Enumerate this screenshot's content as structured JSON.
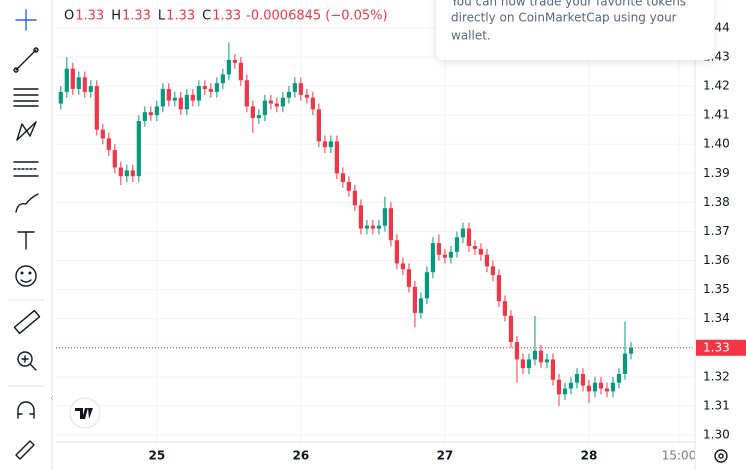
{
  "chart_data": {
    "type": "candlestick",
    "legend": [
      {
        "label": "O",
        "value": 1.33
      },
      {
        "label": "H",
        "value": 1.33
      },
      {
        "label": "L",
        "value": 1.33
      },
      {
        "label": "C",
        "value": 1.33
      }
    ],
    "change": "-0.0006845 (−0.05%)",
    "x": [
      24.3333,
      24.375,
      24.4167,
      24.4583,
      24.5,
      24.5417,
      24.5833,
      24.625,
      24.6667,
      24.7083,
      24.75,
      24.7917,
      24.8333,
      24.875,
      24.9167,
      24.9583,
      25.0,
      25.0417,
      25.0833,
      25.125,
      25.1667,
      25.2083,
      25.25,
      25.2917,
      25.3333,
      25.375,
      25.4167,
      25.4583,
      25.5,
      25.5417,
      25.5833,
      25.625,
      25.6667,
      25.7083,
      25.75,
      25.7917,
      25.8333,
      25.875,
      25.9167,
      25.9583,
      26.0,
      26.0417,
      26.0833,
      26.125,
      26.1667,
      26.2083,
      26.25,
      26.2917,
      26.3333,
      26.375,
      26.4167,
      26.4583,
      26.5,
      26.5417,
      26.5833,
      26.625,
      26.6667,
      26.7083,
      26.75,
      26.7917,
      26.8333,
      26.875,
      26.9167,
      26.9583,
      27.0,
      27.0417,
      27.0833,
      27.125,
      27.1667,
      27.2083,
      27.25,
      27.2917,
      27.3333,
      27.375,
      27.4167,
      27.4583,
      27.5,
      27.5417,
      27.5833,
      27.625,
      27.6667,
      27.7083,
      27.75,
      27.7917,
      27.8333,
      27.875,
      27.9167,
      27.9583,
      28.0,
      28.0417,
      28.0833,
      28.125,
      28.1667,
      28.2083,
      28.25,
      28.2917
    ],
    "open": [
      1.414,
      1.418,
      1.426,
      1.419,
      1.423,
      1.418,
      1.42,
      1.405,
      1.402,
      1.398,
      1.392,
      1.389,
      1.391,
      1.389,
      1.408,
      1.411,
      1.41,
      1.413,
      1.419,
      1.415,
      1.416,
      1.412,
      1.417,
      1.415,
      1.42,
      1.419,
      1.418,
      1.421,
      1.424,
      1.429,
      1.428,
      1.422,
      1.413,
      1.409,
      1.41,
      1.415,
      1.414,
      1.413,
      1.416,
      1.418,
      1.421,
      1.417,
      1.416,
      1.412,
      1.401,
      1.399,
      1.401,
      1.39,
      1.387,
      1.384,
      1.379,
      1.371,
      1.372,
      1.371,
      1.372,
      1.378,
      1.367,
      1.359,
      1.357,
      1.351,
      1.342,
      1.347,
      1.356,
      1.366,
      1.362,
      1.361,
      1.363,
      1.368,
      1.371,
      1.365,
      1.364,
      1.362,
      1.358,
      1.355,
      1.346,
      1.341,
      1.332,
      1.326,
      1.323,
      1.326,
      1.329,
      1.325,
      1.326,
      1.319,
      1.314,
      1.316,
      1.318,
      1.321,
      1.317,
      1.315,
      1.318,
      1.316,
      1.315,
      1.318,
      1.321,
      1.328
    ],
    "high": [
      1.42,
      1.43,
      1.428,
      1.425,
      1.425,
      1.422,
      1.422,
      1.407,
      1.404,
      1.4,
      1.394,
      1.393,
      1.393,
      1.41,
      1.413,
      1.413,
      1.415,
      1.421,
      1.421,
      1.418,
      1.418,
      1.419,
      1.419,
      1.422,
      1.422,
      1.421,
      1.423,
      1.426,
      1.435,
      1.431,
      1.43,
      1.424,
      1.415,
      1.412,
      1.417,
      1.417,
      1.416,
      1.418,
      1.42,
      1.423,
      1.423,
      1.419,
      1.418,
      1.414,
      1.403,
      1.403,
      1.403,
      1.392,
      1.389,
      1.386,
      1.381,
      1.374,
      1.374,
      1.374,
      1.382,
      1.38,
      1.369,
      1.361,
      1.359,
      1.353,
      1.349,
      1.358,
      1.368,
      1.369,
      1.364,
      1.365,
      1.37,
      1.373,
      1.373,
      1.367,
      1.366,
      1.364,
      1.36,
      1.357,
      1.348,
      1.343,
      1.334,
      1.328,
      1.328,
      1.341,
      1.331,
      1.328,
      1.328,
      1.321,
      1.318,
      1.32,
      1.323,
      1.323,
      1.319,
      1.32,
      1.32,
      1.318,
      1.32,
      1.323,
      1.339,
      1.332
    ],
    "low": [
      1.412,
      1.416,
      1.417,
      1.417,
      1.416,
      1.416,
      1.403,
      1.4,
      1.396,
      1.39,
      1.386,
      1.387,
      1.387,
      1.387,
      1.406,
      1.408,
      1.408,
      1.411,
      1.413,
      1.413,
      1.41,
      1.41,
      1.413,
      1.413,
      1.417,
      1.416,
      1.416,
      1.419,
      1.422,
      1.426,
      1.42,
      1.411,
      1.404,
      1.407,
      1.408,
      1.412,
      1.411,
      1.411,
      1.414,
      1.416,
      1.415,
      1.414,
      1.41,
      1.399,
      1.397,
      1.397,
      1.388,
      1.385,
      1.382,
      1.377,
      1.369,
      1.369,
      1.369,
      1.369,
      1.37,
      1.365,
      1.357,
      1.355,
      1.349,
      1.337,
      1.34,
      1.345,
      1.354,
      1.36,
      1.359,
      1.359,
      1.361,
      1.366,
      1.363,
      1.362,
      1.36,
      1.356,
      1.353,
      1.344,
      1.339,
      1.33,
      1.318,
      1.321,
      1.321,
      1.324,
      1.323,
      1.323,
      1.317,
      1.31,
      1.312,
      1.314,
      1.316,
      1.315,
      1.311,
      1.313,
      1.314,
      1.313,
      1.313,
      1.316,
      1.319,
      1.326
    ],
    "close": [
      1.418,
      1.426,
      1.419,
      1.423,
      1.418,
      1.42,
      1.405,
      1.402,
      1.398,
      1.392,
      1.389,
      1.391,
      1.389,
      1.408,
      1.411,
      1.41,
      1.413,
      1.419,
      1.415,
      1.416,
      1.412,
      1.417,
      1.415,
      1.42,
      1.419,
      1.418,
      1.421,
      1.424,
      1.429,
      1.428,
      1.422,
      1.413,
      1.409,
      1.41,
      1.415,
      1.414,
      1.413,
      1.416,
      1.418,
      1.421,
      1.417,
      1.416,
      1.412,
      1.401,
      1.399,
      1.401,
      1.39,
      1.387,
      1.384,
      1.379,
      1.371,
      1.372,
      1.371,
      1.372,
      1.378,
      1.367,
      1.359,
      1.357,
      1.351,
      1.342,
      1.347,
      1.356,
      1.366,
      1.362,
      1.361,
      1.363,
      1.368,
      1.371,
      1.365,
      1.364,
      1.362,
      1.358,
      1.355,
      1.346,
      1.341,
      1.332,
      1.326,
      1.323,
      1.326,
      1.329,
      1.325,
      1.326,
      1.319,
      1.314,
      1.316,
      1.318,
      1.321,
      1.317,
      1.315,
      1.318,
      1.316,
      1.315,
      1.318,
      1.321,
      1.328,
      1.33
    ],
    "up_color": "#089981",
    "down_color": "#f23645",
    "xlim": [
      24.3,
      28.736
    ],
    "xticks": [
      25,
      26,
      27,
      28,
      {
        "value": 28.625,
        "label": "15:00"
      }
    ],
    "ylim": [
      1.2976,
      1.4496
    ],
    "yticks": [
      {
        "value": 1.3,
        "label": "1.30"
      },
      1.31,
      1.32,
      1.34,
      1.35,
      1.36,
      1.37,
      1.38,
      1.39,
      {
        "value": 1.4,
        "label": "1.40"
      },
      1.41,
      1.42,
      1.43,
      1.44
    ],
    "last_price": 1.33,
    "grid": true
  },
  "popup": {
    "lines": [
      "You can now trade your favorite tokens",
      "directly on CoinMarketCap using your",
      "wallet."
    ]
  }
}
